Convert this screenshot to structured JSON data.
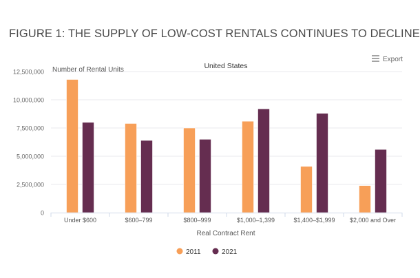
{
  "page_title": "FIGURE 1: THE SUPPLY OF LOW-COST RENTALS CONTINUES TO DECLINE",
  "export_label": "Export",
  "export_icon": "hamburger-menu-icon",
  "chart_data": {
    "type": "bar",
    "title": "United States",
    "xlabel": "Real Contract Rent",
    "ylabel": "Number of Rental Units",
    "categories": [
      "Under $600",
      "$600–799",
      "$800–999",
      "$1,000–1,399",
      "$1,400–$1,999",
      "$2,000 and Over"
    ],
    "series": [
      {
        "name": "2011",
        "color": "#f79f58",
        "values": [
          11800000,
          7900000,
          7500000,
          8100000,
          4100000,
          2400000
        ]
      },
      {
        "name": "2021",
        "color": "#652d50",
        "values": [
          8000000,
          6400000,
          6500000,
          9200000,
          8800000,
          5600000
        ]
      }
    ],
    "ylim": [
      0,
      12500000
    ],
    "yticks": [
      "0",
      "2,500,000",
      "5,000,000",
      "7,500,000",
      "10,000,000",
      "12,500,000"
    ],
    "grid": true,
    "legend": "bottom"
  }
}
